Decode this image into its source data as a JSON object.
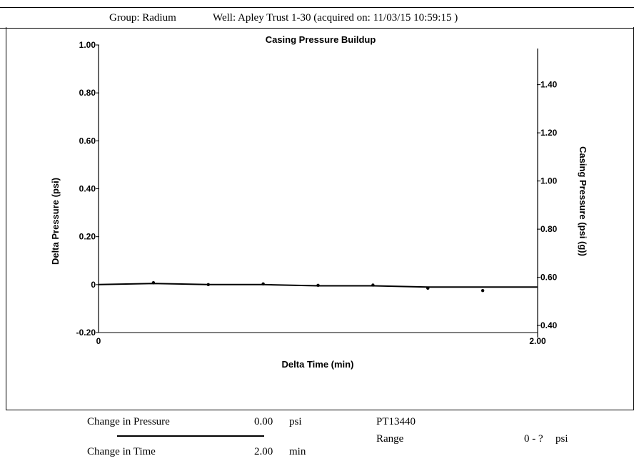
{
  "header": {
    "group_text": "Group: Radium",
    "well_text": "Well: Apley Trust 1-30 (acquired on: 11/03/15 10:59:15 )"
  },
  "chart_data": {
    "type": "line",
    "title": "Casing Pressure Buildup",
    "xlabel": "Delta Time (min)",
    "ylabel": "Delta Pressure (psi)",
    "y2label": "Casing Pressure (psi (g))",
    "xlim": [
      0,
      2.0
    ],
    "ylim": [
      -0.2,
      1.0
    ],
    "y2lim": [
      0.35,
      1.55
    ],
    "x_ticks": [
      "0",
      "2.00"
    ],
    "y_ticks": [
      {
        "v": 1.0,
        "label": "1.00"
      },
      {
        "v": 0.8,
        "label": "0.80"
      },
      {
        "v": 0.6,
        "label": "0.60"
      },
      {
        "v": 0.4,
        "label": "0.40"
      },
      {
        "v": 0.2,
        "label": "0.20"
      },
      {
        "v": 0.0,
        "label": "0"
      },
      {
        "v": -0.2,
        "label": "-0.20"
      }
    ],
    "y2_ticks": [
      {
        "v": 1.4,
        "label": "1.40"
      },
      {
        "v": 1.2,
        "label": "1.20"
      },
      {
        "v": 1.0,
        "label": "1.00"
      },
      {
        "v": 0.8,
        "label": "0.80"
      },
      {
        "v": 0.6,
        "label": "0.60"
      },
      {
        "v": 0.4,
        "label": "0.40"
      }
    ],
    "series": [
      {
        "x": [
          0,
          0.25,
          0.5,
          0.75,
          1.0,
          1.25,
          1.5,
          1.75,
          2.0
        ],
        "y": [
          0,
          0.005,
          0.0,
          0.0,
          -0.005,
          -0.005,
          -0.01,
          -0.01,
          -0.01
        ]
      }
    ],
    "markers": {
      "x": [
        0.25,
        0.5,
        0.75,
        1.0,
        1.25,
        1.5,
        1.75
      ],
      "y": [
        0.008,
        0.0,
        0.003,
        -0.003,
        -0.002,
        -0.015,
        -0.025
      ]
    },
    "grid": false
  },
  "footer": {
    "change_pressure_label": "Change in Pressure",
    "change_pressure_value": "0.00",
    "change_pressure_unit": "psi",
    "change_time_label": "Change in Time",
    "change_time_value": "2.00",
    "change_time_unit": "min",
    "sensor_id": "PT13440",
    "range_label": "Range",
    "range_value": "0 - ?",
    "range_unit": "psi"
  }
}
